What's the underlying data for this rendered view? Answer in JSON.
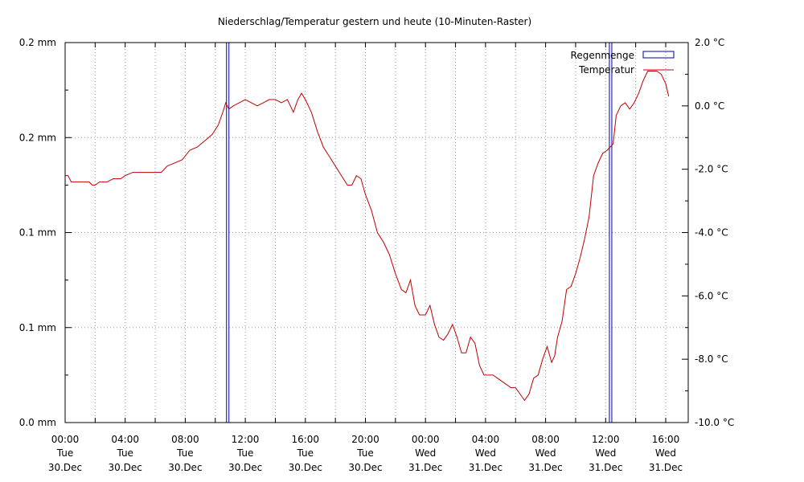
{
  "chart_data": {
    "type": "line",
    "title": "Niederschlag/Temperatur gestern und heute (10-Minuten-Raster)",
    "x_range_hours": [
      0,
      41.5
    ],
    "left_axis": {
      "unit": "mm",
      "ylim": [
        0,
        0.2
      ],
      "tick_labels": [
        "0.0 mm",
        "0.1 mm",
        "0.1 mm",
        "0.2 mm",
        "0.2 mm"
      ]
    },
    "right_axis": {
      "unit": "°C",
      "ylim": [
        -10,
        2
      ],
      "tick_labels": [
        "-10.0 °C",
        "-8.0 °C",
        "-6.0 °C",
        "-4.0 °C",
        "-2.0 °C",
        "0.0 °C",
        "2.0 °C"
      ]
    },
    "x_ticks": [
      {
        "hour": 0,
        "time": "00:00",
        "day": "Tue",
        "date": "30.Dec"
      },
      {
        "hour": 4,
        "time": "04:00",
        "day": "Tue",
        "date": "30.Dec"
      },
      {
        "hour": 8,
        "time": "08:00",
        "day": "Tue",
        "date": "30.Dec"
      },
      {
        "hour": 12,
        "time": "12:00",
        "day": "Tue",
        "date": "30.Dec"
      },
      {
        "hour": 16,
        "time": "16:00",
        "day": "Tue",
        "date": "30.Dec"
      },
      {
        "hour": 20,
        "time": "20:00",
        "day": "Tue",
        "date": "30.Dec"
      },
      {
        "hour": 24,
        "time": "00:00",
        "day": "Wed",
        "date": "31.Dec"
      },
      {
        "hour": 28,
        "time": "04:00",
        "day": "Wed",
        "date": "31.Dec"
      },
      {
        "hour": 32,
        "time": "08:00",
        "day": "Wed",
        "date": "31.Dec"
      },
      {
        "hour": 36,
        "time": "12:00",
        "day": "Wed",
        "date": "31.Dec"
      },
      {
        "hour": 40,
        "time": "16:00",
        "day": "Wed",
        "date": "31.Dec"
      }
    ],
    "grid": true,
    "legend": {
      "placement": "top-right",
      "entries": [
        {
          "label": "Regenmenge",
          "color": "#0000a0"
        },
        {
          "label": "Temperatur",
          "color": "#c00000"
        }
      ]
    },
    "series": [
      {
        "name": "Regenmenge",
        "axis": "left",
        "style": "impulse",
        "color": "#0000a0",
        "points": [
          [
            10.83,
            0.2
          ],
          [
            36.33,
            0.2
          ]
        ]
      },
      {
        "name": "Temperatur",
        "axis": "right",
        "style": "line",
        "color": "#c00000",
        "points": [
          [
            0.0,
            -2.2
          ],
          [
            0.2,
            -2.2
          ],
          [
            0.4,
            -2.4
          ],
          [
            0.8,
            -2.4
          ],
          [
            1.2,
            -2.4
          ],
          [
            1.6,
            -2.4
          ],
          [
            1.8,
            -2.5
          ],
          [
            2.0,
            -2.5
          ],
          [
            2.3,
            -2.4
          ],
          [
            2.8,
            -2.4
          ],
          [
            3.2,
            -2.3
          ],
          [
            3.7,
            -2.3
          ],
          [
            4.0,
            -2.2
          ],
          [
            4.5,
            -2.1
          ],
          [
            5.0,
            -2.1
          ],
          [
            5.5,
            -2.1
          ],
          [
            6.0,
            -2.1
          ],
          [
            6.4,
            -2.1
          ],
          [
            6.8,
            -1.9
          ],
          [
            7.3,
            -1.8
          ],
          [
            7.8,
            -1.7
          ],
          [
            8.3,
            -1.4
          ],
          [
            8.8,
            -1.3
          ],
          [
            9.3,
            -1.1
          ],
          [
            9.8,
            -0.9
          ],
          [
            10.2,
            -0.6
          ],
          [
            10.5,
            -0.2
          ],
          [
            10.7,
            0.1
          ],
          [
            10.9,
            -0.1
          ],
          [
            11.2,
            0.0
          ],
          [
            11.6,
            0.1
          ],
          [
            12.0,
            0.2
          ],
          [
            12.4,
            0.1
          ],
          [
            12.8,
            0.0
          ],
          [
            13.2,
            0.1
          ],
          [
            13.6,
            0.2
          ],
          [
            14.0,
            0.2
          ],
          [
            14.4,
            0.1
          ],
          [
            14.8,
            0.2
          ],
          [
            15.2,
            -0.2
          ],
          [
            15.5,
            0.2
          ],
          [
            15.75,
            0.4
          ],
          [
            16.0,
            0.2
          ],
          [
            16.4,
            -0.2
          ],
          [
            16.8,
            -0.8
          ],
          [
            17.2,
            -1.3
          ],
          [
            17.6,
            -1.6
          ],
          [
            18.0,
            -1.9
          ],
          [
            18.4,
            -2.2
          ],
          [
            18.8,
            -2.5
          ],
          [
            19.1,
            -2.5
          ],
          [
            19.4,
            -2.2
          ],
          [
            19.7,
            -2.3
          ],
          [
            20.0,
            -2.8
          ],
          [
            20.4,
            -3.3
          ],
          [
            20.8,
            -4.0
          ],
          [
            21.2,
            -4.3
          ],
          [
            21.6,
            -4.7
          ],
          [
            22.0,
            -5.3
          ],
          [
            22.4,
            -5.8
          ],
          [
            22.7,
            -5.9
          ],
          [
            23.0,
            -5.5
          ],
          [
            23.3,
            -6.3
          ],
          [
            23.6,
            -6.6
          ],
          [
            24.0,
            -6.6
          ],
          [
            24.3,
            -6.3
          ],
          [
            24.6,
            -6.9
          ],
          [
            24.9,
            -7.3
          ],
          [
            25.2,
            -7.4
          ],
          [
            25.5,
            -7.2
          ],
          [
            25.8,
            -6.9
          ],
          [
            26.1,
            -7.3
          ],
          [
            26.4,
            -7.8
          ],
          [
            26.7,
            -7.8
          ],
          [
            27.0,
            -7.3
          ],
          [
            27.3,
            -7.5
          ],
          [
            27.6,
            -8.2
          ],
          [
            27.9,
            -8.5
          ],
          [
            28.2,
            -8.5
          ],
          [
            28.5,
            -8.5
          ],
          [
            28.8,
            -8.6
          ],
          [
            29.1,
            -8.7
          ],
          [
            29.4,
            -8.8
          ],
          [
            29.7,
            -8.9
          ],
          [
            30.0,
            -8.9
          ],
          [
            30.3,
            -9.1
          ],
          [
            30.6,
            -9.3
          ],
          [
            30.9,
            -9.1
          ],
          [
            31.2,
            -8.6
          ],
          [
            31.5,
            -8.5
          ],
          [
            31.8,
            -8.0
          ],
          [
            32.1,
            -7.6
          ],
          [
            32.4,
            -8.1
          ],
          [
            32.6,
            -7.9
          ],
          [
            32.8,
            -7.3
          ],
          [
            33.1,
            -6.8
          ],
          [
            33.4,
            -5.8
          ],
          [
            33.7,
            -5.7
          ],
          [
            34.0,
            -5.3
          ],
          [
            34.3,
            -4.8
          ],
          [
            34.6,
            -4.2
          ],
          [
            34.9,
            -3.5
          ],
          [
            35.2,
            -2.2
          ],
          [
            35.5,
            -1.8
          ],
          [
            35.8,
            -1.5
          ],
          [
            36.1,
            -1.4
          ],
          [
            36.3,
            -1.3
          ],
          [
            36.5,
            -1.2
          ],
          [
            36.7,
            -0.3
          ],
          [
            37.0,
            0.0
          ],
          [
            37.3,
            0.1
          ],
          [
            37.6,
            -0.1
          ],
          [
            37.9,
            0.1
          ],
          [
            38.2,
            0.4
          ],
          [
            38.5,
            0.8
          ],
          [
            38.8,
            1.1
          ],
          [
            39.1,
            1.1
          ],
          [
            39.4,
            1.1
          ],
          [
            39.7,
            1.0
          ],
          [
            40.0,
            0.7
          ],
          [
            40.2,
            0.3
          ]
        ]
      }
    ]
  }
}
